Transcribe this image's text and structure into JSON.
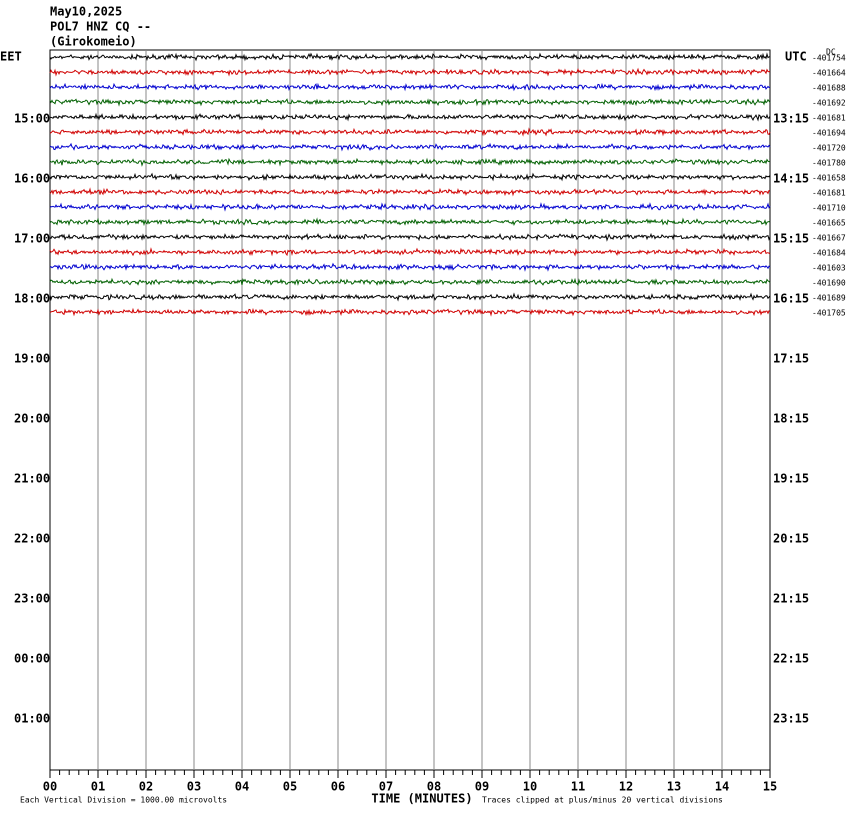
{
  "header": {
    "lines": [
      "May10,2025",
      "POL7 HNZ CQ --",
      "(Girokomeio)"
    ]
  },
  "left_labels": [
    "EET",
    "15:00",
    "16:00",
    "17:00",
    "18:00",
    "19:00",
    "20:00",
    "21:00",
    "22:00",
    "23:00",
    "00:00",
    "01:00"
  ],
  "right_labels": [
    "UTC",
    "13:15",
    "14:15",
    "15:15",
    "16:15",
    "17:15",
    "18:15",
    "19:15",
    "20:15",
    "21:15",
    "22:15",
    "23:15"
  ],
  "dc_label": "DC",
  "dc_values": [
    "-401754",
    "-401664",
    "-401688",
    "-401692",
    "-401681",
    "-401694",
    "-401720",
    "-401780",
    "-401658",
    "-401681",
    "-401710",
    "-401665",
    "-401667",
    "-401684",
    "-401603",
    "-401690",
    "-401689",
    "-401705"
  ],
  "x_ticks": [
    "00",
    "01",
    "02",
    "03",
    "04",
    "05",
    "06",
    "07",
    "08",
    "09",
    "10",
    "11",
    "12",
    "13",
    "14",
    "15"
  ],
  "x_axis_label": "TIME (MINUTES)",
  "footer": {
    "left": "Each Vertical Division = 1000.00 microvolts",
    "right": "Traces clipped at plus/minus 20 vertical divisions"
  }
}
